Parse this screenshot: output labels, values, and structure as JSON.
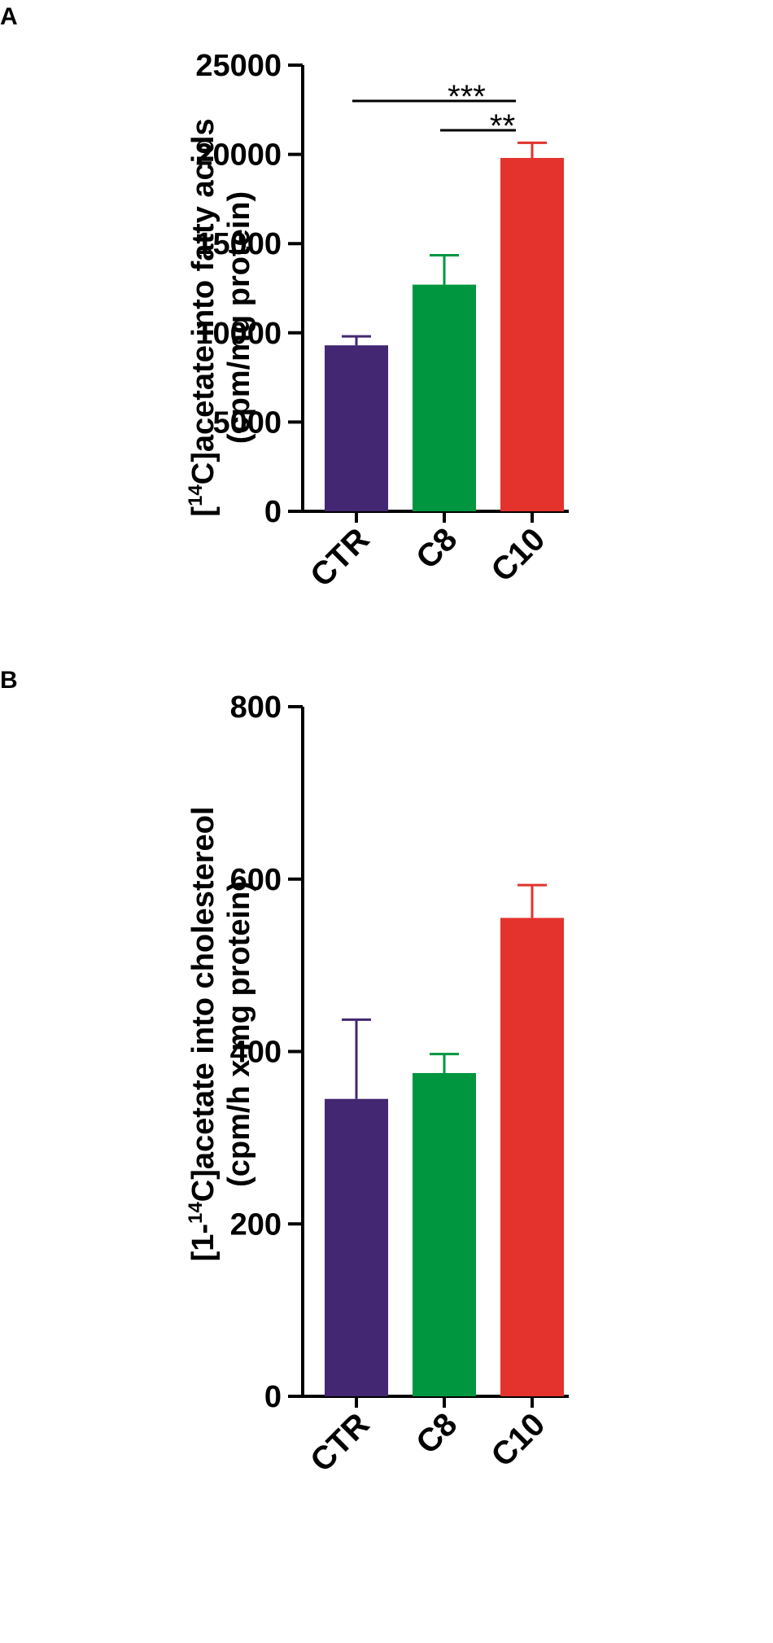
{
  "chart_data": [
    {
      "panel": "A",
      "type": "bar",
      "categories": [
        "CTR",
        "C8",
        "C10"
      ],
      "values": [
        9300,
        12700,
        19800
      ],
      "errors": [
        500,
        1650,
        850
      ],
      "colors": [
        "#432772",
        "#00963f",
        "#e3332c"
      ],
      "ylabel_line1_parts": [
        "[",
        "14",
        "C]acetate into fatty acids"
      ],
      "ylabel_line2": "(cpm/mg protein)",
      "ylim": [
        0,
        25000
      ],
      "yticks": [
        0,
        5000,
        10000,
        15000,
        20000,
        25000
      ],
      "tick_labels": [
        "0",
        "5000",
        "10000",
        "15000",
        "20000",
        "25000"
      ],
      "significance": [
        {
          "from": "CTR",
          "to": "C10",
          "label": "***"
        },
        {
          "from": "C8",
          "to": "C10",
          "label": "**"
        }
      ]
    },
    {
      "panel": "B",
      "type": "bar",
      "categories": [
        "CTR",
        "C8",
        "C10"
      ],
      "values": [
        345,
        375,
        555
      ],
      "errors": [
        92,
        22,
        38
      ],
      "colors": [
        "#432772",
        "#00963f",
        "#e3332c"
      ],
      "ylabel_line1_parts": [
        "[1-",
        "14",
        "C]acetate into cholestereol"
      ],
      "ylabel_line2": "(cpm/h x mg protein)",
      "ylim": [
        0,
        800
      ],
      "yticks": [
        0,
        200,
        400,
        600,
        800
      ],
      "tick_labels": [
        "0",
        "200",
        "400",
        "600",
        "800"
      ],
      "significance": []
    }
  ]
}
